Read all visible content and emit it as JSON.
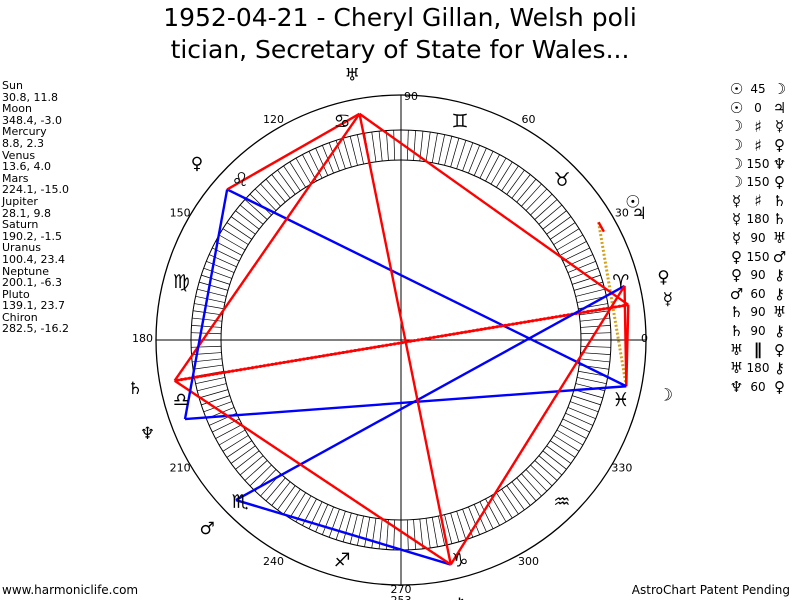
{
  "header": {
    "title_line1": "1952-04-21 - Cheryl Gillan, Welsh poli",
    "title_line2": "tician, Secretary of State for Wales..."
  },
  "planets": [
    {
      "name": "Sun",
      "lon": 30.8,
      "lat": 11.8,
      "coords": "30.8, 11.8",
      "glyph": "☉",
      "color": "#000000"
    },
    {
      "name": "Moon",
      "lon": 348.4,
      "lat": -3.0,
      "coords": "348.4, -3.0",
      "glyph": "☽",
      "color": "#000000"
    },
    {
      "name": "Mercury",
      "lon": 8.8,
      "lat": 2.3,
      "coords": "8.8, 2.3",
      "glyph": "☿",
      "color": "#000000"
    },
    {
      "name": "Venus",
      "lon": 13.6,
      "lat": 4.0,
      "coords": "13.6, 4.0",
      "glyph": "♀",
      "color": "#000000"
    },
    {
      "name": "Mars",
      "lon": 224.1,
      "lat": -15.0,
      "coords": "224.1, -15.0",
      "glyph": "♂",
      "color": "#000000"
    },
    {
      "name": "Jupiter",
      "lon": 28.1,
      "lat": 9.8,
      "coords": "28.1, 9.8",
      "glyph": "♃",
      "color": "#000000"
    },
    {
      "name": "Saturn",
      "lon": 190.2,
      "lat": -1.5,
      "coords": "190.2, -1.5",
      "glyph": "♄",
      "color": "#000000"
    },
    {
      "name": "Uranus",
      "lon": 100.4,
      "lat": 23.4,
      "coords": "100.4, 23.4",
      "glyph": "♅",
      "color": "#000000"
    },
    {
      "name": "Neptune",
      "lon": 200.1,
      "lat": -6.3,
      "coords": "200.1, -6.3",
      "glyph": "♆",
      "color": "#000000"
    },
    {
      "name": "Pluto",
      "lon": 139.1,
      "lat": 23.7,
      "coords": "139.1, 23.7",
      "glyph": "♀",
      "color": "#000000"
    },
    {
      "name": "Chiron",
      "lon": 282.5,
      "lat": -16.2,
      "coords": "282.5, -16.2",
      "glyph": "⚷",
      "color": "#000000"
    }
  ],
  "aspects": [
    {
      "p1": "☉",
      "symbol": "45",
      "p2": "☽",
      "color": "#d4a017",
      "from": "Sun",
      "to": "Moon"
    },
    {
      "p1": "☉",
      "symbol": "0",
      "p2": "♃",
      "color": "#ff0000",
      "from": "Sun",
      "to": "Jupiter"
    },
    {
      "p1": "☽",
      "symbol": "♯",
      "p2": "☿",
      "color": "#ff0000",
      "from": "Moon",
      "to": "Mercury"
    },
    {
      "p1": "☽",
      "symbol": "♯",
      "p2": "♀",
      "color": "#ff0000",
      "from": "Moon",
      "to": "Venus"
    },
    {
      "p1": "☽",
      "symbol": "150",
      "p2": "♆",
      "color": "#0000ff",
      "from": "Moon",
      "to": "Neptune"
    },
    {
      "p1": "☽",
      "symbol": "150",
      "p2": "♀",
      "color": "#0000ff",
      "from": "Moon",
      "to": "Pluto"
    },
    {
      "p1": "☿",
      "symbol": "♯",
      "p2": "♄",
      "color": "#ff0000",
      "from": "Mercury",
      "to": "Saturn"
    },
    {
      "p1": "☿",
      "symbol": "180",
      "p2": "♄",
      "color": "#ff0000",
      "from": "Mercury",
      "to": "Saturn"
    },
    {
      "p1": "☿",
      "symbol": "90",
      "p2": "♅",
      "color": "#ff0000",
      "from": "Mercury",
      "to": "Uranus"
    },
    {
      "p1": "♀",
      "symbol": "150",
      "p2": "♂",
      "color": "#0000ff",
      "from": "Venus",
      "to": "Mars"
    },
    {
      "p1": "♀",
      "symbol": "90",
      "p2": "⚷",
      "color": "#ff0000",
      "from": "Venus",
      "to": "Chiron"
    },
    {
      "p1": "♂",
      "symbol": "60",
      "p2": "⚷",
      "color": "#0000ff",
      "from": "Mars",
      "to": "Chiron"
    },
    {
      "p1": "♄",
      "symbol": "90",
      "p2": "♅",
      "color": "#ff0000",
      "from": "Saturn",
      "to": "Uranus"
    },
    {
      "p1": "♄",
      "symbol": "90",
      "p2": "⚷",
      "color": "#ff0000",
      "from": "Saturn",
      "to": "Chiron"
    },
    {
      "p1": "♅",
      "symbol": "∥",
      "p2": "♀",
      "color": "#ff0000",
      "from": "Uranus",
      "to": "Pluto"
    },
    {
      "p1": "♅",
      "symbol": "180",
      "p2": "⚷",
      "color": "#ff0000",
      "from": "Uranus",
      "to": "Chiron"
    },
    {
      "p1": "♆",
      "symbol": "60",
      "p2": "♀",
      "color": "#0000ff",
      "from": "Neptune",
      "to": "Pluto"
    }
  ],
  "wheel": {
    "degree_labels": [
      "0",
      "30",
      "60",
      "90",
      "120",
      "150",
      "180",
      "210",
      "240",
      "270",
      "300",
      "330"
    ],
    "degree_values": [
      0,
      30,
      60,
      90,
      120,
      150,
      180,
      210,
      240,
      270,
      300,
      330
    ],
    "bottom_label": "253",
    "signs": [
      "♈",
      "♉",
      "♊",
      "♋",
      "♌",
      "♍",
      "♎",
      "♏",
      "♐",
      "♑",
      "♒",
      "♓"
    ],
    "line_colors": {
      "hard": "#ff0000",
      "soft": "#0000ff",
      "minor": "#d4a017"
    }
  },
  "footer": {
    "left": "www.harmoniclife.com",
    "right": "AstroChart Patent Pending"
  }
}
